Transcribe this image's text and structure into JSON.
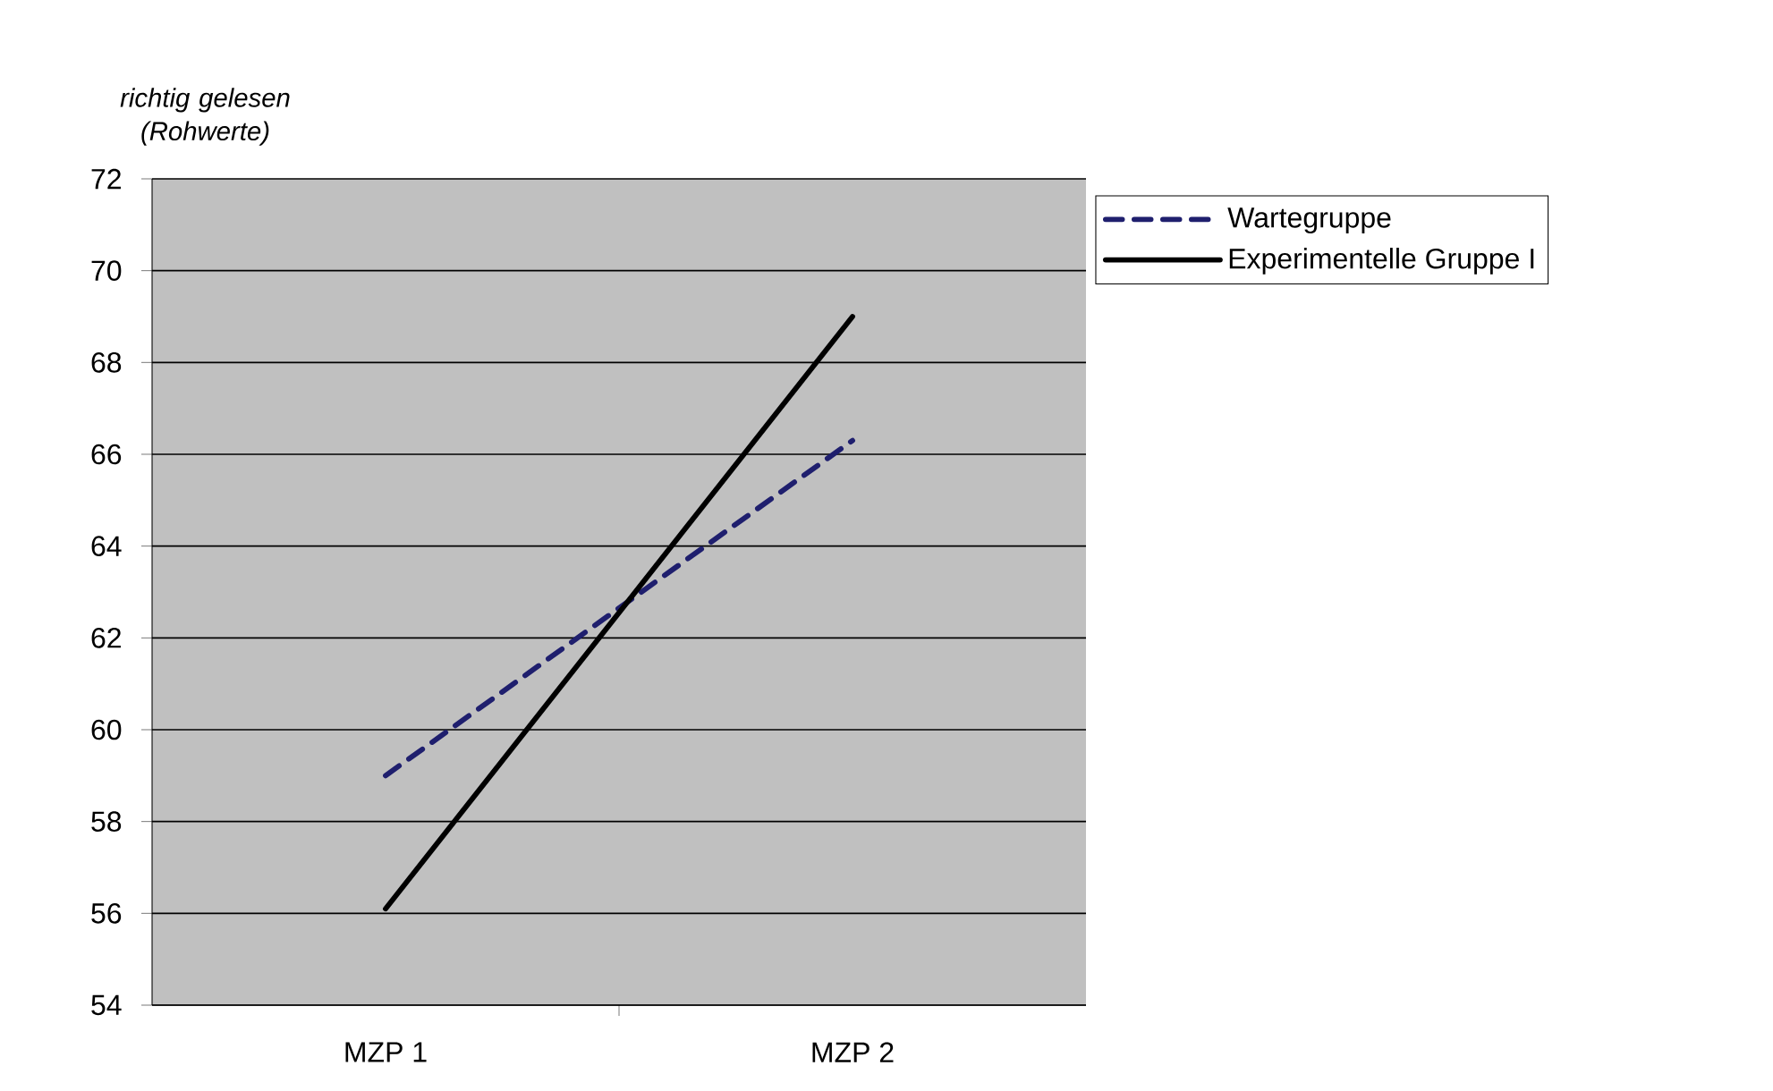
{
  "chart_data": {
    "type": "line",
    "ylabel": "richtig gelesen (Rohwerte)",
    "categories": [
      "MZP 1",
      "MZP 2"
    ],
    "series": [
      {
        "name": "Wartegruppe",
        "color": "#1f1f6e",
        "values": [
          59.0,
          66.3
        ],
        "line_style": "dashed"
      },
      {
        "name": "Experimentelle Gruppe I",
        "color": "#000000",
        "values": [
          56.1,
          69.0
        ],
        "line_style": "solid"
      }
    ],
    "ylim": [
      54,
      72
    ],
    "yticks": [
      54,
      56,
      58,
      60,
      62,
      64,
      66,
      68,
      70,
      72
    ],
    "grid": "y",
    "legend": "top right",
    "marker": "none"
  }
}
